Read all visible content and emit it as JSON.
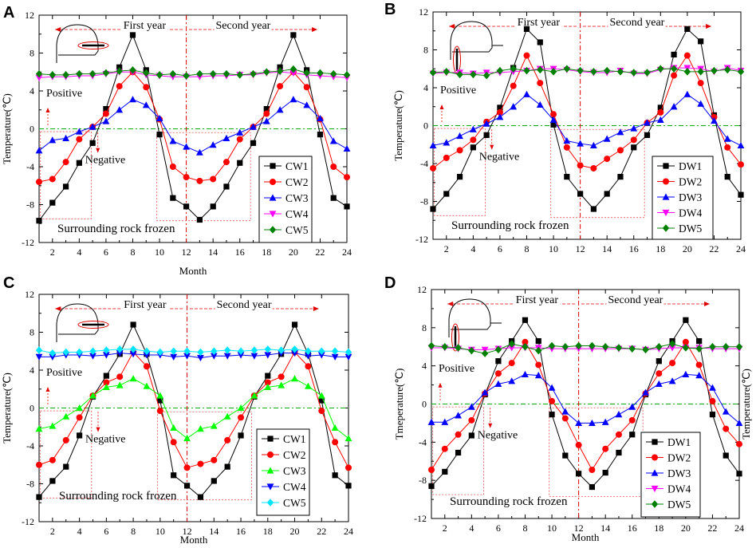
{
  "figure": {
    "label": "Figure: monthly tunnel surrounding-rock temperature in crown (CW) and wall (DW) positions over two years"
  },
  "chart_data": [
    {
      "type": "line",
      "panel": "A",
      "ylabel": "Temperature(℃)",
      "xlabel": "Month",
      "xlim": [
        1,
        24
      ],
      "ylim": [
        -12,
        12
      ],
      "xticks": [
        2,
        4,
        6,
        8,
        10,
        12,
        14,
        16,
        18,
        20,
        22,
        24
      ],
      "yticks": [
        -12,
        -8,
        -4,
        0,
        4,
        8,
        12
      ],
      "annotations": {
        "first_year": "First year",
        "second_year": "Second year",
        "positive": "Positive",
        "negative": "Negative",
        "frozen": "Surrounding rock frozen"
      },
      "x": [
        1,
        2,
        3,
        4,
        5,
        6,
        7,
        8,
        9,
        10,
        11,
        12,
        13,
        14,
        15,
        16,
        17,
        18,
        19,
        20,
        21,
        22,
        23,
        24
      ],
      "series": [
        {
          "name": "CW1",
          "color": "#000000",
          "marker": "square",
          "values": [
            -9.7,
            -7.8,
            -6.1,
            -3.6,
            -1.5,
            2.1,
            6.5,
            9.9,
            6.2,
            -0.6,
            -7.3,
            -8.2,
            -9.6,
            -8.2,
            -6.1,
            -3.6,
            -1.5,
            2.1,
            6.5,
            9.9,
            6.2,
            -0.6,
            -7.3,
            -8.2
          ]
        },
        {
          "name": "CW2",
          "color": "#ff0000",
          "marker": "circle",
          "values": [
            -5.6,
            -5.3,
            -3.5,
            -1.1,
            0.2,
            1.6,
            4.5,
            6.0,
            4.4,
            1.0,
            -4.0,
            -5.1,
            -5.5,
            -5.3,
            -3.5,
            -1.1,
            0.2,
            1.6,
            4.5,
            6.0,
            4.4,
            1.0,
            -4.0,
            -5.1
          ]
        },
        {
          "name": "CW3",
          "color": "#0000ff",
          "marker": "triangle-up",
          "values": [
            -2.3,
            -1.2,
            -1.0,
            -0.3,
            0.2,
            0.8,
            2.0,
            3.1,
            2.5,
            1.1,
            -1.3,
            -1.9,
            -2.5,
            -1.7,
            -1.0,
            -0.4,
            0.2,
            0.8,
            2.0,
            3.1,
            2.5,
            1.1,
            -1.3,
            -2.1
          ]
        },
        {
          "name": "CW4",
          "color": "#ff00ff",
          "marker": "triangle-down",
          "values": [
            5.4,
            5.5,
            5.5,
            5.6,
            5.6,
            5.8,
            6.0,
            6.0,
            5.7,
            5.6,
            5.5,
            5.5,
            5.5,
            5.6,
            5.6,
            5.7,
            5.7,
            5.9,
            6.0,
            5.9,
            5.7,
            5.6,
            5.5,
            5.4
          ]
        },
        {
          "name": "CW5",
          "color": "#008000",
          "marker": "diamond",
          "values": [
            5.8,
            5.7,
            5.7,
            5.8,
            5.8,
            5.9,
            6.1,
            6.2,
            5.9,
            5.7,
            5.8,
            5.6,
            5.8,
            5.8,
            5.8,
            5.7,
            5.8,
            6.0,
            6.1,
            6.3,
            5.9,
            5.9,
            5.8,
            5.7
          ]
        }
      ]
    },
    {
      "type": "line",
      "panel": "B",
      "ylabel": "Temperature(℃)",
      "xlabel": "",
      "xlim": [
        1,
        24
      ],
      "ylim": [
        -12,
        12
      ],
      "xticks": [
        2,
        4,
        6,
        8,
        10,
        12,
        14,
        16,
        18,
        20,
        22,
        24
      ],
      "yticks": [
        -12,
        -8,
        -4,
        0,
        4,
        8,
        12
      ],
      "annotations": {
        "first_year": "First year",
        "second_year": "Second year",
        "positive": "Positive",
        "negative": "Negative",
        "frozen": "Surrounding rock frozen"
      },
      "x": [
        1,
        2,
        3,
        4,
        5,
        6,
        7,
        8,
        9,
        10,
        11,
        12,
        13,
        14,
        15,
        16,
        17,
        18,
        19,
        20,
        21,
        22,
        23,
        24
      ],
      "series": [
        {
          "name": "DW1",
          "color": "#000000",
          "marker": "square",
          "values": [
            -8.8,
            -7.2,
            -5.4,
            -2.3,
            -1.0,
            1.9,
            6.1,
            10.2,
            8.8,
            0.1,
            -5.4,
            -7.2,
            -8.8,
            -7.2,
            -5.4,
            -2.3,
            -1.0,
            1.9,
            7.5,
            10.2,
            8.9,
            1.1,
            -5.4,
            -7.3
          ]
        },
        {
          "name": "DW2",
          "color": "#ff0000",
          "marker": "circle",
          "values": [
            -4.5,
            -3.4,
            -2.6,
            -1.5,
            0.4,
            1.4,
            4.2,
            7.4,
            4.5,
            1.2,
            -2.3,
            -4.2,
            -4.5,
            -3.5,
            -2.6,
            -1.5,
            0.3,
            1.4,
            5.3,
            7.4,
            4.5,
            0.9,
            -2.3,
            -4.1
          ]
        },
        {
          "name": "DW3",
          "color": "#0000ff",
          "marker": "triangle-up",
          "values": [
            -2.1,
            -1.8,
            -1.1,
            -0.4,
            0.2,
            0.9,
            2.0,
            3.3,
            2.2,
            0.6,
            -1.6,
            -1.9,
            -2.1,
            -1.4,
            -0.7,
            -0.3,
            0.3,
            0.6,
            2.0,
            3.3,
            2.3,
            0.5,
            -1.4,
            -2.1
          ]
        },
        {
          "name": "DW4",
          "color": "#ff00ff",
          "marker": "triangle-down",
          "values": [
            5.5,
            5.6,
            5.6,
            5.5,
            5.6,
            5.6,
            5.7,
            5.8,
            6.0,
            6.0,
            5.9,
            5.7,
            5.6,
            5.6,
            5.8,
            5.5,
            5.5,
            5.9,
            6.1,
            6.1,
            6.0,
            5.7,
            6.1,
            5.8
          ]
        },
        {
          "name": "DW5",
          "color": "#008000",
          "marker": "diamond",
          "values": [
            5.6,
            5.7,
            5.4,
            5.4,
            5.3,
            5.8,
            6.0,
            5.8,
            5.9,
            5.7,
            6.0,
            5.8,
            5.7,
            5.8,
            5.7,
            5.6,
            5.6,
            6.0,
            6.0,
            5.7,
            5.7,
            5.8,
            5.9,
            5.7
          ]
        }
      ]
    },
    {
      "type": "line",
      "panel": "C",
      "ylabel": "Temperature(℃)",
      "xlabel": "Month",
      "xlim": [
        1,
        24
      ],
      "ylim": [
        -12,
        12
      ],
      "xticks": [
        2,
        4,
        6,
        8,
        10,
        12,
        14,
        16,
        18,
        20,
        22,
        24
      ],
      "yticks": [
        -12,
        -8,
        -4,
        0,
        4,
        8,
        12
      ],
      "annotations": {
        "first_year": "First year",
        "second_year": "Second year",
        "positive": "Positive",
        "negative": "Negative",
        "frozen": "Surrounding rock frozen"
      },
      "x": [
        1,
        2,
        3,
        4,
        5,
        6,
        7,
        8,
        9,
        10,
        11,
        12,
        13,
        14,
        15,
        16,
        17,
        18,
        19,
        20,
        21,
        22,
        23,
        24
      ],
      "series": [
        {
          "name": "CW1",
          "color": "#000000",
          "marker": "square",
          "values": [
            -9.4,
            -7.7,
            -6.2,
            -2.9,
            1.2,
            3.4,
            5.7,
            8.8,
            5.7,
            0.8,
            -7.1,
            -8.2,
            -9.4,
            -7.7,
            -6.2,
            -2.9,
            1.2,
            3.4,
            5.7,
            8.8,
            5.7,
            0.8,
            -7.1,
            -8.2
          ]
        },
        {
          "name": "CW2",
          "color": "#ff0000",
          "marker": "circle",
          "values": [
            -6.0,
            -5.5,
            -3.4,
            -1.0,
            1.3,
            2.7,
            3.3,
            5.9,
            4.4,
            -0.3,
            -3.6,
            -6.3,
            -5.9,
            -5.5,
            -3.4,
            -1.0,
            1.3,
            2.7,
            3.3,
            5.9,
            4.4,
            -0.3,
            -3.6,
            -6.3
          ]
        },
        {
          "name": "CW3",
          "color": "#00ff00",
          "marker": "triangle-up",
          "values": [
            -2.2,
            -1.9,
            -0.9,
            0.0,
            1.3,
            2.2,
            2.4,
            3.1,
            2.3,
            1.3,
            -2.1,
            -3.2,
            -2.2,
            -1.9,
            -0.9,
            0.0,
            1.3,
            2.2,
            2.4,
            3.1,
            2.3,
            1.3,
            -2.1,
            -3.2
          ]
        },
        {
          "name": "CW4",
          "color": "#0000ff",
          "marker": "triangle-down",
          "values": [
            5.4,
            5.4,
            5.6,
            5.6,
            5.5,
            5.6,
            5.8,
            5.7,
            5.6,
            5.6,
            5.4,
            5.5,
            5.3,
            5.5,
            5.5,
            5.6,
            5.5,
            5.6,
            5.8,
            5.8,
            5.5,
            5.6,
            5.4,
            5.4
          ]
        },
        {
          "name": "CW5",
          "color": "#00e5ff",
          "marker": "diamond",
          "values": [
            6.1,
            5.8,
            5.9,
            5.9,
            6.0,
            6.1,
            6.2,
            6.2,
            6.0,
            5.9,
            6.0,
            6.0,
            5.9,
            6.0,
            6.1,
            6.0,
            6.1,
            6.2,
            6.1,
            6.2,
            6.0,
            6.0,
            6.0,
            5.9
          ]
        }
      ]
    },
    {
      "type": "line",
      "panel": "D",
      "ylabel": "Tmeperature(℃)",
      "ylabel_right": "Temperature(℃)",
      "xlabel": "Month",
      "xlim": [
        1,
        24
      ],
      "ylim": [
        -12,
        12
      ],
      "xticks": [
        2,
        4,
        6,
        8,
        10,
        12,
        14,
        16,
        18,
        20,
        22,
        24
      ],
      "yticks": [
        -12,
        -8,
        -4,
        0,
        4,
        8,
        12
      ],
      "annotations": {
        "first_year": "First year",
        "second_year": "Second year",
        "positive": "Positive",
        "negative": "Negative",
        "frozen": "Surrounding rock frozen"
      },
      "x": [
        1,
        2,
        3,
        4,
        5,
        6,
        7,
        8,
        9,
        10,
        11,
        12,
        13,
        14,
        15,
        16,
        17,
        18,
        19,
        20,
        21,
        22,
        23,
        24
      ],
      "series": [
        {
          "name": "DW1",
          "color": "#000000",
          "marker": "square",
          "values": [
            -8.6,
            -7.1,
            -5.1,
            -3.3,
            1.0,
            4.5,
            6.6,
            8.8,
            6.6,
            -1.1,
            -5.4,
            -7.3,
            -8.7,
            -7.2,
            -5.1,
            -3.2,
            1.0,
            4.5,
            6.6,
            8.8,
            6.6,
            -1.1,
            -5.4,
            -7.3
          ]
        },
        {
          "name": "DW2",
          "color": "#ff0000",
          "marker": "circle",
          "values": [
            -6.9,
            -4.7,
            -3.2,
            -1.7,
            1.1,
            3.2,
            4.3,
            6.5,
            4.1,
            0.3,
            -1.5,
            -4.3,
            -6.9,
            -4.7,
            -3.2,
            -1.7,
            1.1,
            3.2,
            4.3,
            6.5,
            4.1,
            0.3,
            -2.6,
            -4.2
          ]
        },
        {
          "name": "DW3",
          "color": "#0000ff",
          "marker": "triangle-up",
          "values": [
            -1.9,
            -1.9,
            -1.2,
            -0.3,
            1.2,
            2.1,
            2.4,
            3.1,
            3.0,
            1.7,
            -0.8,
            -2.0,
            -2.0,
            -1.9,
            -1.1,
            -0.3,
            1.2,
            2.1,
            2.4,
            3.1,
            3.0,
            1.7,
            -0.8,
            -2.0
          ]
        },
        {
          "name": "DW4",
          "color": "#ff00ff",
          "marker": "triangle-down",
          "values": [
            5.9,
            5.9,
            5.8,
            5.7,
            5.7,
            5.8,
            5.9,
            5.9,
            5.9,
            5.8,
            5.8,
            5.8,
            5.8,
            5.8,
            5.8,
            5.8,
            5.7,
            5.8,
            5.9,
            5.9,
            5.9,
            5.8,
            5.8,
            5.8
          ]
        },
        {
          "name": "DW5",
          "color": "#008000",
          "marker": "diamond",
          "values": [
            6.1,
            6.0,
            5.9,
            5.6,
            5.3,
            5.7,
            6.3,
            6.0,
            5.6,
            6.1,
            6.0,
            6.1,
            6.1,
            6.0,
            5.9,
            5.8,
            5.7,
            6.0,
            6.3,
            5.9,
            5.8,
            6.0,
            6.0,
            6.0
          ]
        }
      ]
    }
  ]
}
